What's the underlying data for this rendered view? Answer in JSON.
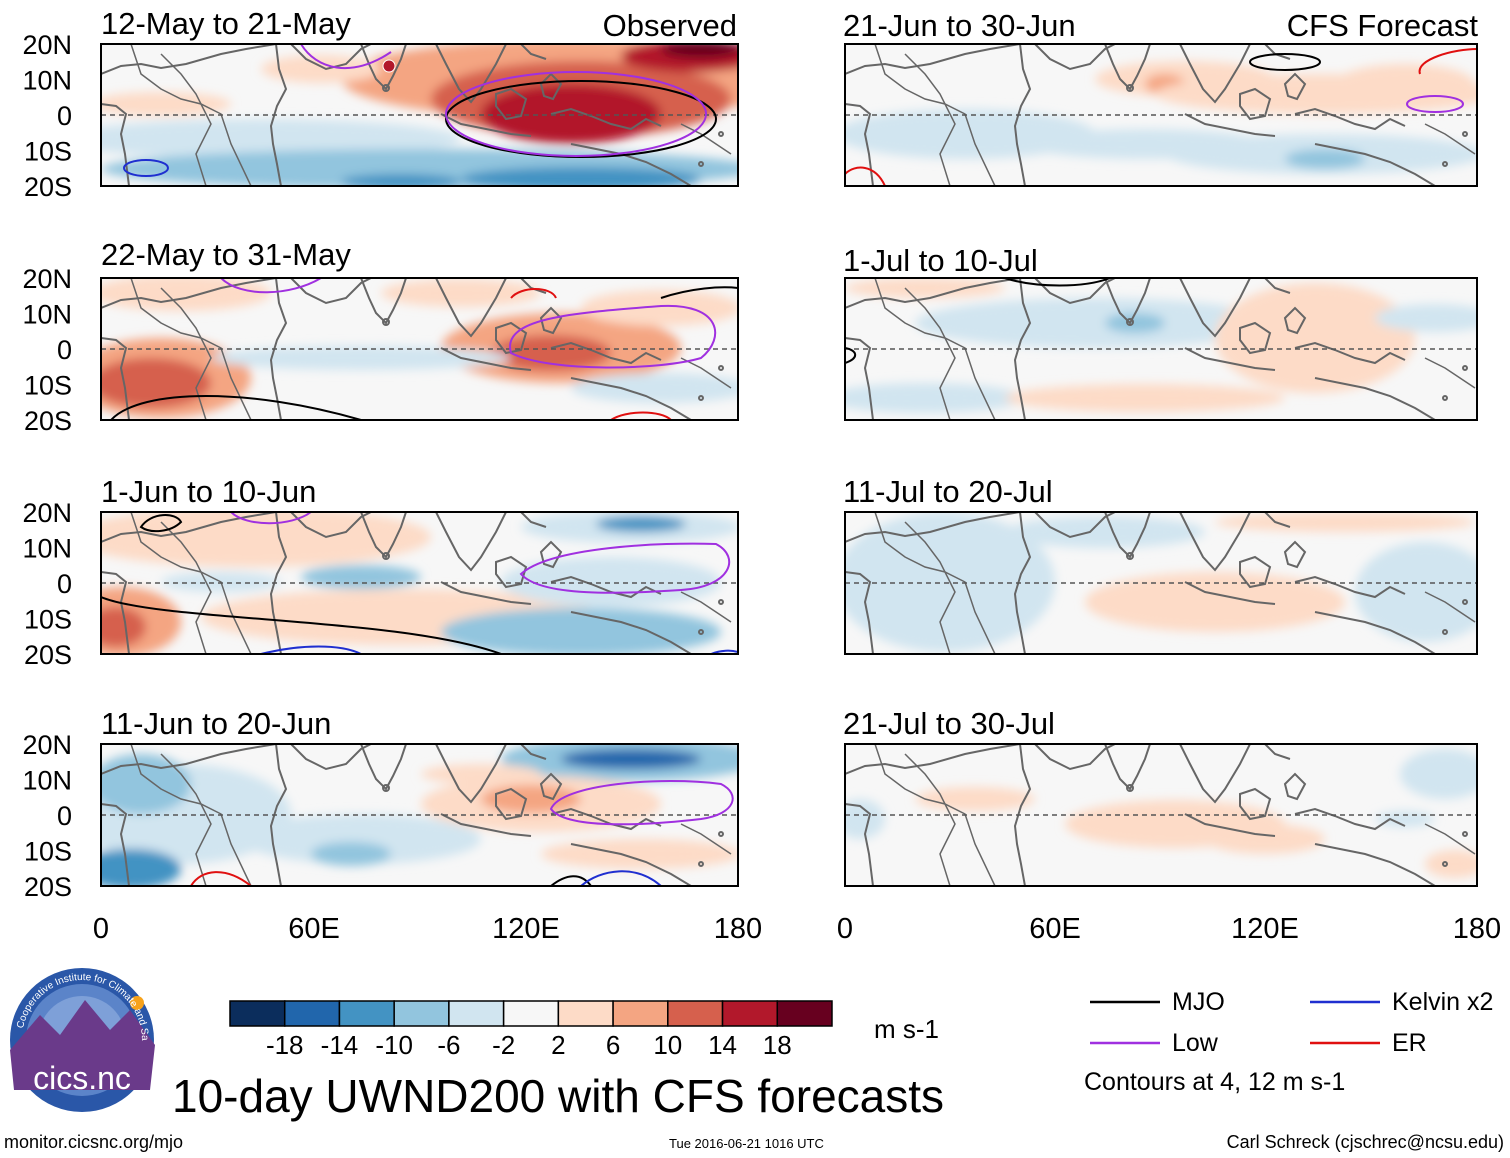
{
  "figure": {
    "main_title": "10-day UWND200 with CFS forecasts",
    "observed_label": "Observed",
    "forecast_label": "CFS Forecast",
    "website": "monitor.cicsnc.org/mjo",
    "timestamp": "Tue 2016-06-21 1016 UTC",
    "author": "Carl Schreck (cjschrec@ncsu.edu)",
    "logo": {
      "text": "cics.nc",
      "ring_text": "Cooperative Institute for Climate and Satellites"
    }
  },
  "axes": {
    "lat_labels": [
      "20N",
      "10N",
      "0",
      "10S",
      "20S"
    ],
    "lon_labels": [
      "0",
      "60E",
      "120E",
      "180"
    ]
  },
  "panels": [
    {
      "id": "obs1",
      "title": "12-May to 21-May",
      "column": "observed"
    },
    {
      "id": "obs2",
      "title": "22-May to 31-May",
      "column": "observed"
    },
    {
      "id": "obs3",
      "title": "1-Jun to 10-Jun",
      "column": "observed"
    },
    {
      "id": "obs4",
      "title": "11-Jun to 20-Jun",
      "column": "observed"
    },
    {
      "id": "fc1",
      "title": "21-Jun to 30-Jun",
      "column": "forecast"
    },
    {
      "id": "fc2",
      "title": "1-Jul to 10-Jul",
      "column": "forecast"
    },
    {
      "id": "fc3",
      "title": "11-Jul to 20-Jul",
      "column": "forecast"
    },
    {
      "id": "fc4",
      "title": "21-Jul to 30-Jul",
      "column": "forecast"
    }
  ],
  "colorbar": {
    "unit": "m s-1",
    "tick_labels": [
      "-18",
      "-14",
      "-10",
      "-6",
      "-2",
      "2",
      "6",
      "10",
      "14",
      "18"
    ],
    "colors": [
      "#0b2d5c",
      "#2166ac",
      "#4393c3",
      "#92c5de",
      "#d1e5f0",
      "#f7f7f7",
      "#fddbc7",
      "#f4a582",
      "#d6604d",
      "#b2182b",
      "#67001f"
    ]
  },
  "legend": {
    "items": [
      {
        "label": "MJO",
        "color": "#000000"
      },
      {
        "label": "Kelvin x2",
        "color": "#1f2fd0"
      },
      {
        "label": "Low",
        "color": "#a030e0"
      },
      {
        "label": "ER",
        "color": "#e01010"
      }
    ],
    "note": "Contours at 4, 12 m s-1"
  },
  "chart_data": {
    "type": "heatmap",
    "variable": "200-hPa zonal wind anomaly (10-day mean)",
    "unit": "m s-1",
    "lon_range": [
      0,
      180
    ],
    "lat_range": [
      -20,
      20
    ],
    "contour_levels": [
      4,
      12
    ],
    "observed": [
      {
        "period": "12-May to 21-May",
        "dominant_anomaly": "strong westerly (10 to 18+) over 100E-180, 0-20N; easterly (-6 to -14) south of 10S",
        "contours": [
          "MJO",
          "Low",
          "ER",
          "Kelvin x2"
        ]
      },
      {
        "period": "22-May to 31-May",
        "dominant_anomaly": "westerly (6 to 14) near 120E-140E equator and over 0-30E south of 10S",
        "contours": [
          "MJO",
          "Low",
          "ER"
        ]
      },
      {
        "period": "1-Jun to 10-Jun",
        "dominant_anomaly": "weak westerly 0-40E; easterly (-6 to -10) near 80E and 140E-160E north of 10N",
        "contours": [
          "MJO",
          "Low",
          "ER",
          "Kelvin x2"
        ]
      },
      {
        "period": "11-Jun to 20-Jun",
        "dominant_anomaly": "easterly (-10 to -14) 145E-180 near 15N; westerly (2 to 10) near 110E-150E",
        "contours": [
          "MJO",
          "Low",
          "ER",
          "Kelvin x2"
        ]
      }
    ],
    "forecast": [
      {
        "period": "21-Jun to 30-Jun",
        "dominant_anomaly": "weak easterly (-2 to -6) near equator; weak westerly 80E-180 north of equator",
        "contours": [
          "MJO",
          "Low",
          "ER"
        ]
      },
      {
        "period": "1-Jul to 10-Jul",
        "dominant_anomaly": "weak easterly 40E-100E; weak westerly 100E-150E",
        "contours": [
          "MJO"
        ]
      },
      {
        "period": "11-Jul to 20-Jul",
        "dominant_anomaly": "weak westerly 80E-150E south of equator; weak easterly elsewhere",
        "contours": []
      },
      {
        "period": "21-Jul to 30-Jul",
        "dominant_anomaly": "weak westerly (2 to 6) 80E-140E; weak easterly near 0E and 160E",
        "contours": []
      }
    ]
  }
}
